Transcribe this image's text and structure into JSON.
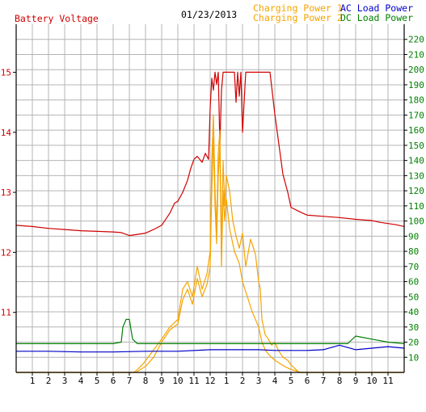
{
  "header": {
    "left_title": "Battery Voltage",
    "date": "01/23/2013",
    "legend": [
      {
        "label": "Charging Power 1",
        "color": "#f5a400"
      },
      {
        "label": "Charging Power 2",
        "color": "#f5a400"
      },
      {
        "label": "AC Load Power",
        "color": "#0000c8"
      },
      {
        "label": "DC Load Power",
        "color": "#008000"
      }
    ]
  },
  "colors": {
    "battery_voltage": "#d00000",
    "charging_power": "#f5a400",
    "ac_load": "#0000c8",
    "dc_load": "#008000",
    "grid": "#b4b4b4",
    "frame": "#000000"
  },
  "chart_data": {
    "type": "line",
    "grid": true,
    "x_unit": "hour of day",
    "xlim": [
      0,
      24
    ],
    "x_tick_labels": [
      "1",
      "2",
      "3",
      "4",
      "5",
      "6",
      "7",
      "8",
      "9",
      "10",
      "11",
      "12",
      "1",
      "2",
      "3",
      "4",
      "5",
      "6",
      "7",
      "8",
      "9",
      "10",
      "11"
    ],
    "y_left": {
      "ylim": [
        10,
        15.8
      ],
      "ticks": [
        11,
        12,
        13,
        14,
        15
      ],
      "color": "#d00000"
    },
    "y_right": {
      "ylim": [
        0,
        230
      ],
      "ticks": [
        10,
        20,
        30,
        40,
        50,
        60,
        70,
        80,
        90,
        100,
        110,
        120,
        130,
        140,
        150,
        160,
        170,
        180,
        190,
        200,
        210,
        220
      ],
      "color": "#008000"
    },
    "series": [
      {
        "name": "Battery Voltage",
        "axis": "left",
        "color": "#d00000",
        "x": [
          0,
          1,
          2,
          3,
          4,
          5,
          6,
          6.5,
          6.8,
          7,
          7.5,
          8,
          8.5,
          9,
          9.5,
          9.8,
          10,
          10.3,
          10.6,
          10.8,
          11,
          11.2,
          11.5,
          11.7,
          11.9,
          12,
          12.1,
          12.2,
          12.3,
          12.4,
          12.5,
          12.6,
          12.7,
          12.8,
          13,
          13.2,
          13.3,
          13.5,
          13.6,
          13.7,
          13.8,
          13.9,
          14,
          14.2,
          14.5,
          14.8,
          15,
          15.1,
          15.2,
          15.3,
          15.5,
          15.7,
          16,
          16.3,
          16.5,
          16.8,
          17,
          17.5,
          18,
          19,
          20,
          21,
          22,
          22.5,
          23,
          23.5,
          24
        ],
        "y": [
          12.45,
          12.43,
          12.4,
          12.38,
          12.36,
          12.35,
          12.34,
          12.33,
          12.3,
          12.28,
          12.3,
          12.32,
          12.38,
          12.45,
          12.65,
          12.82,
          12.85,
          13.0,
          13.2,
          13.4,
          13.55,
          13.6,
          13.5,
          13.65,
          13.55,
          14.4,
          14.9,
          14.7,
          15.0,
          14.8,
          15.0,
          13.8,
          14.7,
          15.0,
          15.0,
          15.0,
          15.0,
          15.0,
          14.5,
          15.0,
          14.6,
          15.0,
          14.0,
          15.0,
          15.0,
          15.0,
          15.0,
          15.0,
          15.0,
          15.0,
          15.0,
          15.0,
          14.3,
          13.7,
          13.3,
          13.0,
          12.75,
          12.68,
          12.62,
          12.6,
          12.58,
          12.55,
          12.53,
          12.5,
          12.48,
          12.46,
          12.43
        ]
      },
      {
        "name": "Charging Power 1",
        "axis": "right",
        "color": "#f5a400",
        "x": [
          0,
          7.3,
          7.8,
          8.3,
          9,
          9.5,
          10,
          10.3,
          10.6,
          10.9,
          11.2,
          11.5,
          11.8,
          12,
          12.1,
          12.2,
          12.3,
          12.4,
          12.5,
          12.6,
          12.7,
          12.8,
          12.9,
          13,
          13.2,
          13.4,
          13.6,
          13.8,
          14,
          14.2,
          14.5,
          14.8,
          15,
          15.1,
          15.2,
          15.4,
          15.6,
          15.8,
          16,
          16.2,
          16.5,
          16.8,
          17,
          17.2,
          17.5,
          18,
          24
        ],
        "y": [
          0,
          0,
          5,
          12,
          22,
          30,
          35,
          55,
          60,
          50,
          70,
          55,
          65,
          80,
          140,
          170,
          120,
          95,
          145,
          160,
          80,
          140,
          110,
          130,
          120,
          100,
          90,
          82,
          92,
          70,
          88,
          78,
          60,
          55,
          35,
          25,
          22,
          18,
          20,
          15,
          10,
          8,
          5,
          3,
          0,
          0,
          0
        ]
      },
      {
        "name": "Charging Power 2",
        "axis": "right",
        "color": "#f5a400",
        "x": [
          0,
          7.4,
          8,
          8.5,
          9,
          9.5,
          10,
          10.3,
          10.6,
          10.9,
          11.2,
          11.5,
          11.8,
          12,
          12.1,
          12.2,
          12.3,
          12.4,
          12.5,
          12.6,
          12.7,
          12.8,
          12.9,
          13,
          13.2,
          13.5,
          13.8,
          14,
          14.3,
          14.6,
          15,
          15.2,
          15.4,
          15.6,
          15.8,
          16,
          16.3,
          16.6,
          16.8,
          17,
          17.3,
          17.6,
          24
        ],
        "y": [
          0,
          0,
          4,
          10,
          20,
          28,
          32,
          48,
          55,
          45,
          62,
          50,
          58,
          70,
          120,
          155,
          110,
          85,
          130,
          150,
          70,
          120,
          100,
          115,
          95,
          80,
          72,
          60,
          50,
          40,
          30,
          20,
          15,
          12,
          10,
          8,
          6,
          4,
          3,
          2,
          1,
          0,
          0
        ]
      },
      {
        "name": "AC Load Power",
        "axis": "right",
        "color": "#0000c8",
        "x": [
          0,
          2,
          4,
          6,
          8,
          10,
          12,
          13,
          14,
          15,
          16,
          18,
          19,
          20,
          21,
          22,
          23,
          24
        ],
        "y": [
          14,
          14,
          13.5,
          13.5,
          14,
          14,
          15,
          15,
          15,
          15,
          14.5,
          14.5,
          15,
          18,
          15,
          16,
          17,
          16
        ]
      },
      {
        "name": "DC Load Power",
        "axis": "right",
        "color": "#008000",
        "x": [
          0,
          2,
          4,
          6,
          6.5,
          6.6,
          6.8,
          7,
          7.2,
          7.5,
          8,
          10,
          12,
          14,
          16,
          18,
          20,
          20.5,
          21,
          22,
          23,
          24
        ],
        "y": [
          19,
          19,
          19,
          19,
          20,
          30,
          35,
          35,
          22,
          19,
          19,
          19,
          19,
          19,
          19,
          19,
          19,
          19,
          24,
          22,
          20,
          19
        ]
      }
    ]
  }
}
